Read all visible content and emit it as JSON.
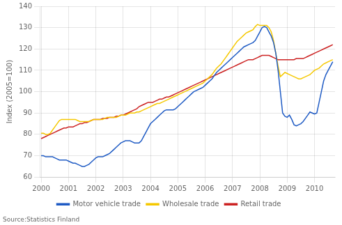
{
  "chart_data": {
    "type": "line",
    "ylabel": "Index (2005=100)",
    "annotations": [
      "Source:Statistics Finland"
    ],
    "xlim": [
      1999.95,
      2010.75
    ],
    "xticks": [
      2000,
      2001,
      2002,
      2003,
      2004,
      2005,
      2006,
      2007,
      2008,
      2009,
      2010
    ],
    "ylim": [
      60,
      140
    ],
    "yticks": [
      60,
      70,
      80,
      90,
      100,
      110,
      120,
      130,
      140
    ],
    "grid": true,
    "legend": "bottom",
    "x": [
      2000.0,
      2000.083,
      2000.167,
      2000.25,
      2000.333,
      2000.417,
      2000.5,
      2000.583,
      2000.667,
      2000.75,
      2000.833,
      2000.917,
      2001.0,
      2001.083,
      2001.167,
      2001.25,
      2001.333,
      2001.417,
      2001.5,
      2001.583,
      2001.667,
      2001.75,
      2001.833,
      2001.917,
      2002.0,
      2002.083,
      2002.167,
      2002.25,
      2002.333,
      2002.417,
      2002.5,
      2002.583,
      2002.667,
      2002.75,
      2002.833,
      2002.917,
      2003.0,
      2003.083,
      2003.167,
      2003.25,
      2003.333,
      2003.417,
      2003.5,
      2003.583,
      2003.667,
      2003.75,
      2003.833,
      2003.917,
      2004.0,
      2004.083,
      2004.167,
      2004.25,
      2004.333,
      2004.417,
      2004.5,
      2004.583,
      2004.667,
      2004.75,
      2004.833,
      2004.917,
      2005.0,
      2005.083,
      2005.167,
      2005.25,
      2005.333,
      2005.417,
      2005.5,
      2005.583,
      2005.667,
      2005.75,
      2005.833,
      2005.917,
      2006.0,
      2006.083,
      2006.167,
      2006.25,
      2006.333,
      2006.417,
      2006.5,
      2006.583,
      2006.667,
      2006.75,
      2006.833,
      2006.917,
      2007.0,
      2007.083,
      2007.167,
      2007.25,
      2007.333,
      2007.417,
      2007.5,
      2007.583,
      2007.667,
      2007.75,
      2007.833,
      2007.917,
      2008.0,
      2008.083,
      2008.167,
      2008.25,
      2008.333,
      2008.417,
      2008.5,
      2008.583,
      2008.667,
      2008.75,
      2008.833,
      2008.917,
      2009.0,
      2009.083,
      2009.167,
      2009.25,
      2009.333,
      2009.417,
      2009.5,
      2009.583,
      2009.667,
      2009.75,
      2009.833,
      2009.917,
      2010.0,
      2010.083,
      2010.167,
      2010.25,
      2010.333,
      2010.417,
      2010.5,
      2010.583,
      2010.667
    ],
    "series": [
      {
        "name": "Motor vehicle trade",
        "color": "#1F5BC4",
        "values": [
          70.0,
          70.0,
          69.5,
          69.5,
          69.5,
          69.5,
          69.0,
          68.5,
          68.0,
          68.0,
          68.0,
          68.0,
          67.5,
          67.0,
          66.5,
          66.5,
          66.0,
          65.5,
          65.0,
          65.0,
          65.5,
          66.0,
          67.0,
          68.0,
          69.0,
          69.5,
          69.5,
          69.5,
          70.0,
          70.5,
          71.0,
          72.0,
          73.0,
          74.0,
          75.0,
          76.0,
          76.5,
          77.0,
          77.0,
          77.0,
          76.5,
          76.0,
          76.0,
          76.0,
          77.0,
          79.0,
          81.0,
          83.0,
          85.0,
          86.0,
          87.0,
          88.0,
          89.0,
          90.0,
          91.0,
          91.5,
          91.5,
          91.5,
          91.5,
          92.0,
          93.0,
          94.0,
          95.0,
          96.0,
          97.0,
          98.0,
          99.0,
          100.0,
          100.5,
          101.0,
          101.5,
          102.0,
          103.0,
          104.0,
          105.0,
          106.0,
          107.5,
          109.0,
          110.0,
          111.0,
          112.0,
          113.0,
          114.0,
          115.0,
          116.0,
          117.0,
          118.0,
          119.0,
          120.0,
          121.0,
          121.5,
          122.0,
          122.5,
          123.0,
          124.0,
          126.0,
          128.0,
          130.0,
          130.5,
          130.0,
          128.0,
          126.0,
          123.0,
          118.0,
          110.0,
          100.0,
          90.0,
          88.5,
          88.0,
          89.0,
          87.0,
          84.5,
          84.0,
          84.5,
          85.0,
          86.0,
          87.5,
          89.0,
          90.5,
          90.0,
          89.5,
          90.0,
          95.0,
          100.0,
          105.0,
          108.0,
          110.0,
          112.0,
          114.0
        ]
      },
      {
        "name": "Wholesale trade",
        "color": "#F5C800",
        "values": [
          80.5,
          80.5,
          80.0,
          80.0,
          80.5,
          82.0,
          83.5,
          85.0,
          86.5,
          87.0,
          87.0,
          87.0,
          87.0,
          87.0,
          87.0,
          87.0,
          86.5,
          86.0,
          86.0,
          86.0,
          86.0,
          86.0,
          86.5,
          87.0,
          87.0,
          87.0,
          87.0,
          87.0,
          87.5,
          88.0,
          88.0,
          88.0,
          88.0,
          88.0,
          88.5,
          89.0,
          89.0,
          89.0,
          89.5,
          90.0,
          90.0,
          90.0,
          90.5,
          90.5,
          91.0,
          91.5,
          92.0,
          92.5,
          93.0,
          93.5,
          94.0,
          94.5,
          94.5,
          95.0,
          95.5,
          96.0,
          96.5,
          97.0,
          97.5,
          98.0,
          98.5,
          99.0,
          99.5,
          100.0,
          100.5,
          101.0,
          101.5,
          102.0,
          102.5,
          103.0,
          103.5,
          104.0,
          105.0,
          106.0,
          107.0,
          108.0,
          109.5,
          111.0,
          112.0,
          113.0,
          114.5,
          116.0,
          117.5,
          119.0,
          120.5,
          122.0,
          123.5,
          124.5,
          125.5,
          126.5,
          127.5,
          128.0,
          128.5,
          129.0,
          130.5,
          131.5,
          131.0,
          131.0,
          131.0,
          131.0,
          130.0,
          128.0,
          124.0,
          118.0,
          112.0,
          107.0,
          108.0,
          109.0,
          108.5,
          108.0,
          107.5,
          107.0,
          106.5,
          106.0,
          106.0,
          106.5,
          107.0,
          107.5,
          108.0,
          109.0,
          110.0,
          110.5,
          111.0,
          112.0,
          113.0,
          113.5,
          114.0,
          114.5,
          115.0
        ]
      },
      {
        "name": "Retail trade",
        "color": "#CC2222",
        "values": [
          78.0,
          78.5,
          79.0,
          79.5,
          80.0,
          80.5,
          81.0,
          81.5,
          82.0,
          82.5,
          83.0,
          83.0,
          83.5,
          83.5,
          83.5,
          84.0,
          84.5,
          85.0,
          85.0,
          85.5,
          85.5,
          86.0,
          86.5,
          87.0,
          87.0,
          87.0,
          87.0,
          87.5,
          87.5,
          87.5,
          88.0,
          88.0,
          88.0,
          88.5,
          88.5,
          89.0,
          89.0,
          89.5,
          90.0,
          90.5,
          91.0,
          91.5,
          92.0,
          93.0,
          93.5,
          94.0,
          94.5,
          95.0,
          95.0,
          95.0,
          95.5,
          96.0,
          96.5,
          96.5,
          97.0,
          97.5,
          97.5,
          98.0,
          98.5,
          99.0,
          99.5,
          100.0,
          100.5,
          101.0,
          101.5,
          102.0,
          102.5,
          103.0,
          103.5,
          104.0,
          104.5,
          105.0,
          105.5,
          106.0,
          106.5,
          107.0,
          107.5,
          108.0,
          108.5,
          109.0,
          109.5,
          110.0,
          110.5,
          111.0,
          111.5,
          112.0,
          112.5,
          113.0,
          113.5,
          114.0,
          114.5,
          115.0,
          115.0,
          115.0,
          115.5,
          116.0,
          116.5,
          117.0,
          117.0,
          117.0,
          117.0,
          116.5,
          116.0,
          115.5,
          115.0,
          115.0,
          115.0,
          115.0,
          115.0,
          115.0,
          115.0,
          115.0,
          115.5,
          115.5,
          115.5,
          115.5,
          116.0,
          116.5,
          117.0,
          117.5,
          118.0,
          118.5,
          119.0,
          119.5,
          120.0,
          120.5,
          121.0,
          121.5,
          122.0
        ]
      }
    ]
  }
}
